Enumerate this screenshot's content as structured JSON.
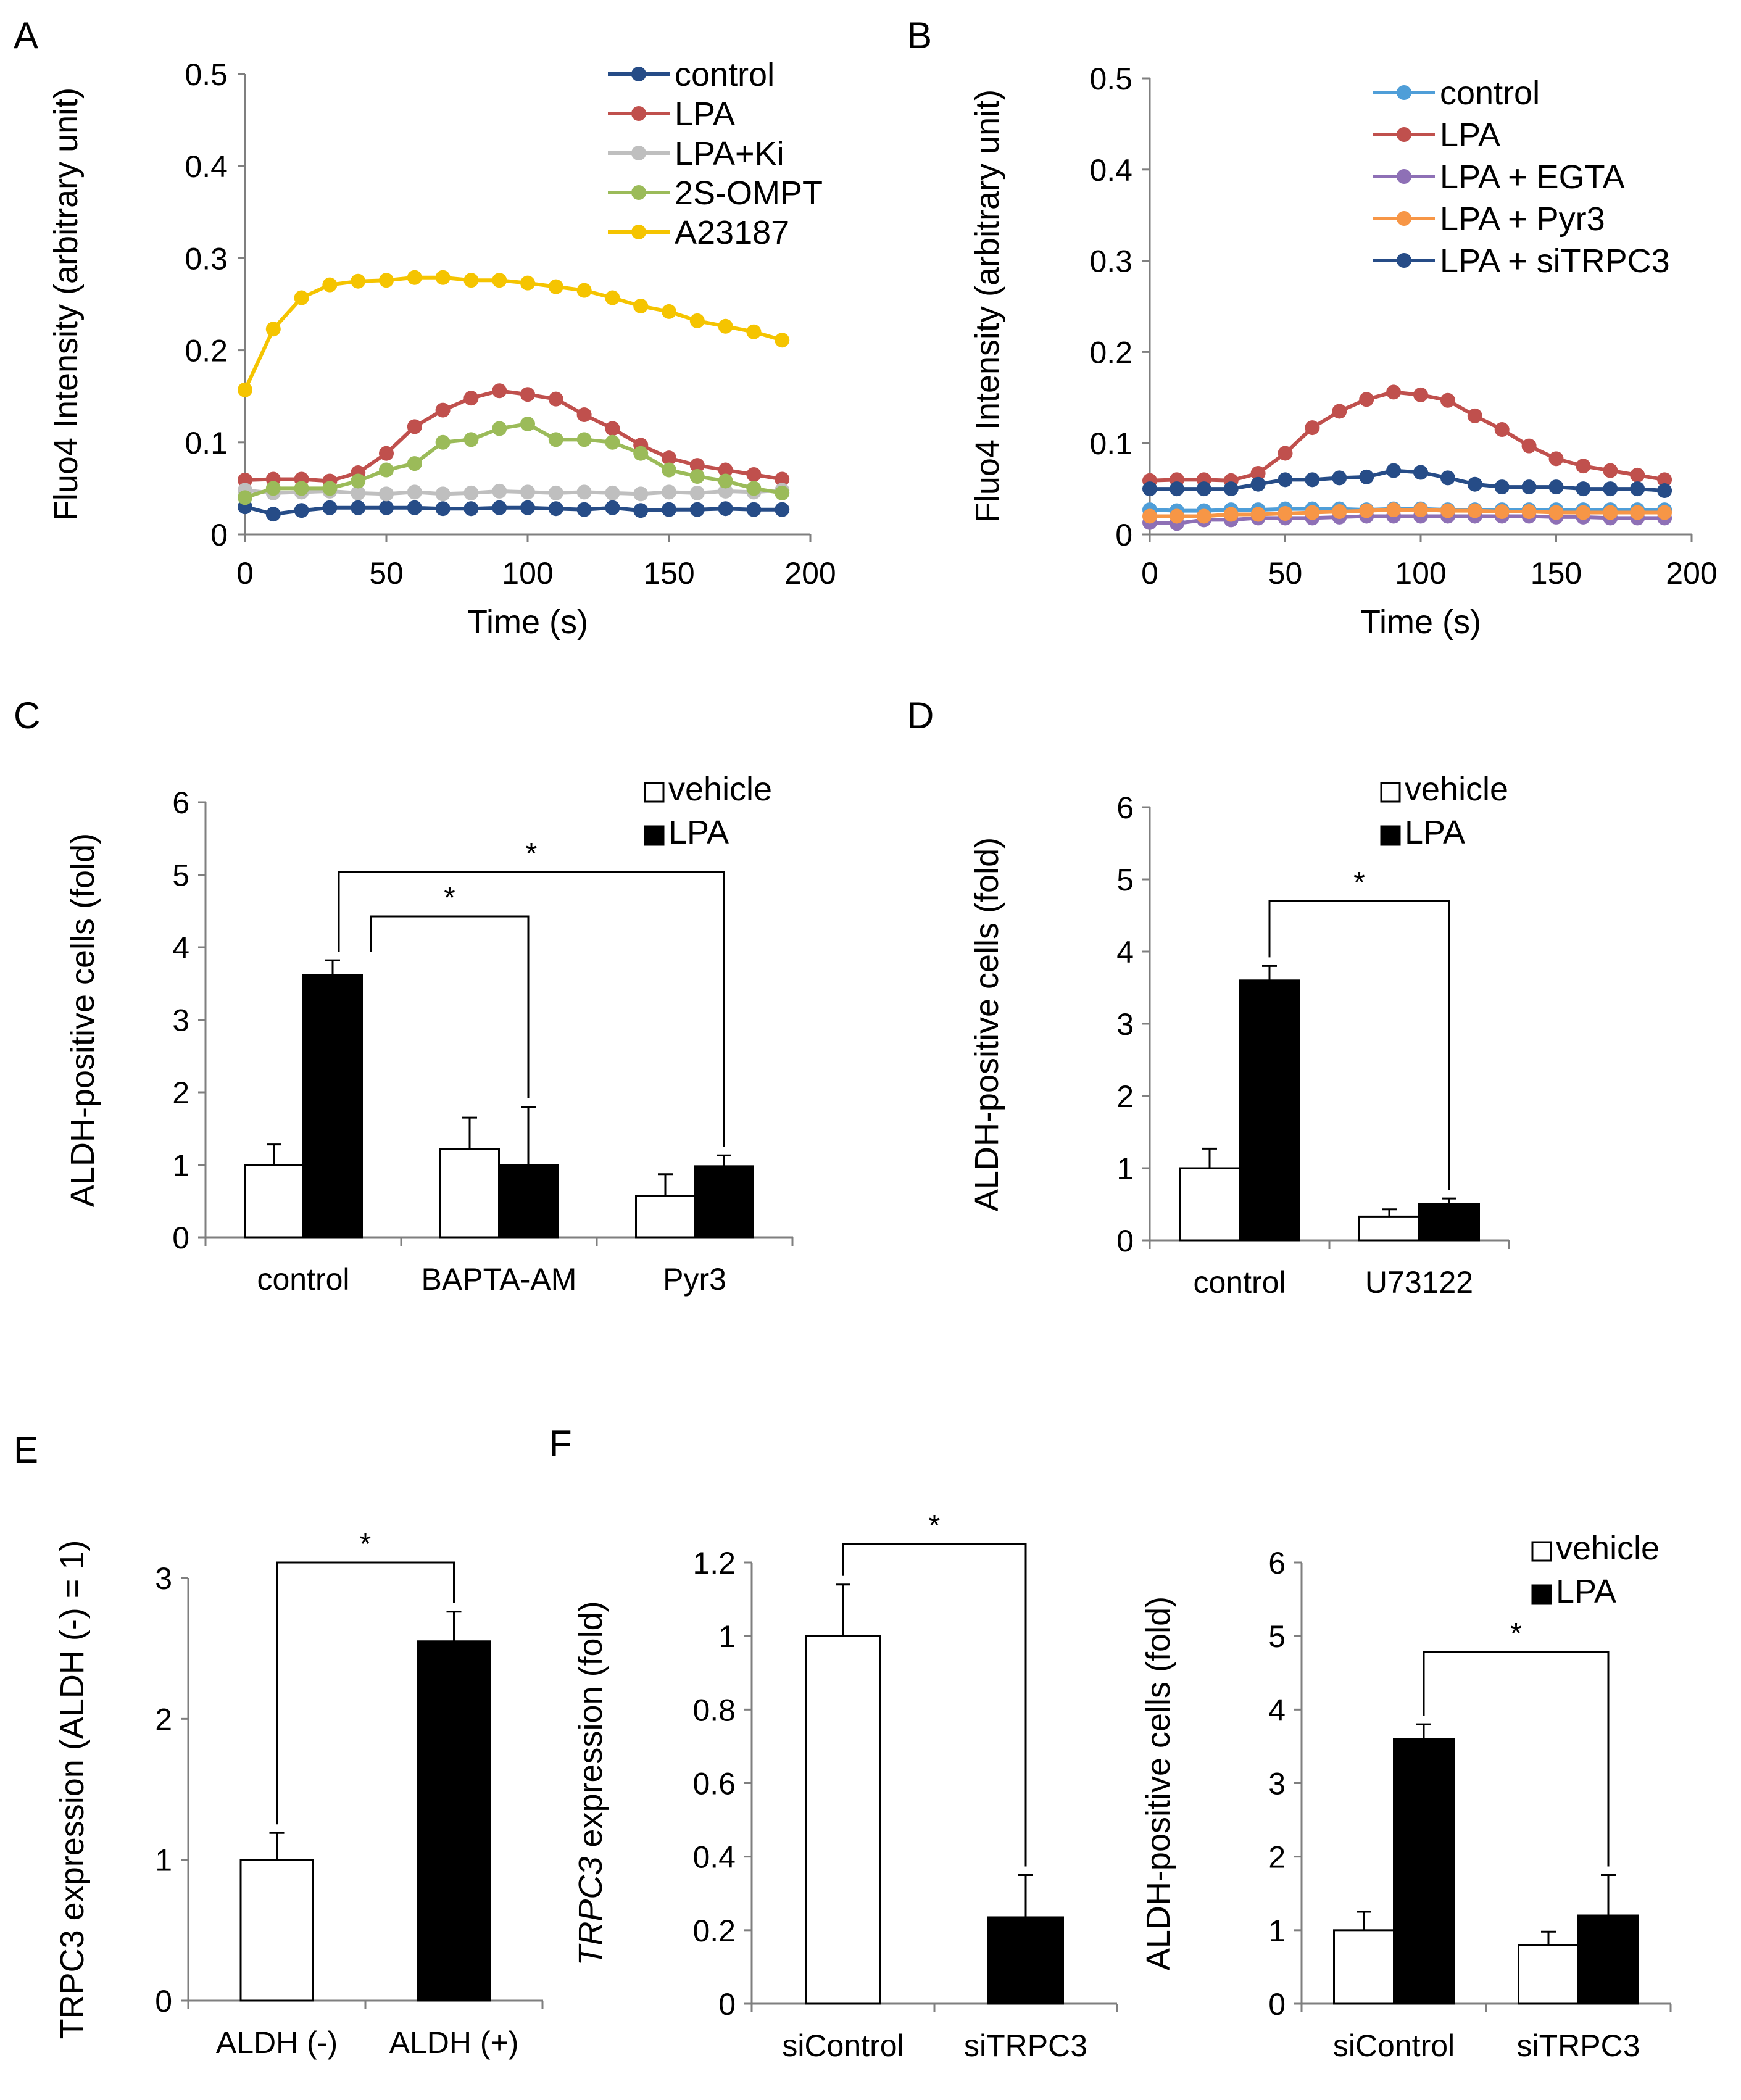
{
  "colors": {
    "control_A": "#264c87",
    "LPA": "#c0504d",
    "LPA+Ki": "#bfbfbf",
    "2S-OMPT": "#9bbb59",
    "A23187": "#f5c400",
    "control_B": "#4f9ed8",
    "LPA + EGTA": "#8e70b6",
    "LPA + Pyr3": "#f79646",
    "LPA + siTRPC3": "#264c87",
    "vehicle": "#ffffff",
    "LPA_bar": "#000000"
  },
  "chart_data": [
    {
      "panel": "A",
      "type": "line",
      "xlabel": "Time (s)",
      "ylabel": "Fluo4 Intensity (arbitrary unit)",
      "xlim": [
        0,
        200
      ],
      "ylim": [
        0,
        0.5
      ],
      "xticks": [
        "0",
        "50",
        "100",
        "150",
        "200"
      ],
      "yticks": [
        "0",
        "0.1",
        "0.2",
        "0.3",
        "0.4",
        "0.5"
      ],
      "x": [
        0,
        10,
        20,
        30,
        40,
        50,
        60,
        70,
        80,
        90,
        100,
        110,
        120,
        130,
        140,
        150,
        160,
        170,
        180,
        190
      ],
      "series": [
        {
          "name": "control",
          "color_key": "control_A",
          "values": [
            0.03,
            0.022,
            0.026,
            0.029,
            0.029,
            0.029,
            0.029,
            0.028,
            0.028,
            0.029,
            0.029,
            0.028,
            0.027,
            0.029,
            0.026,
            0.027,
            0.027,
            0.028,
            0.027,
            0.027
          ]
        },
        {
          "name": "LPA",
          "color_key": "LPA",
          "values": [
            0.059,
            0.06,
            0.06,
            0.058,
            0.067,
            0.088,
            0.117,
            0.135,
            0.148,
            0.156,
            0.152,
            0.147,
            0.13,
            0.115,
            0.097,
            0.083,
            0.075,
            0.07,
            0.065,
            0.06
          ]
        },
        {
          "name": "LPA+Ki",
          "color_key": "LPA+Ki",
          "values": [
            0.048,
            0.045,
            0.046,
            0.047,
            0.045,
            0.044,
            0.046,
            0.044,
            0.045,
            0.047,
            0.046,
            0.045,
            0.046,
            0.045,
            0.044,
            0.046,
            0.045,
            0.047,
            0.046,
            0.048
          ]
        },
        {
          "name": "2S-OMPT",
          "color_key": "2S-OMPT",
          "values": [
            0.04,
            0.05,
            0.05,
            0.05,
            0.058,
            0.07,
            0.077,
            0.1,
            0.103,
            0.115,
            0.12,
            0.103,
            0.103,
            0.1,
            0.088,
            0.07,
            0.063,
            0.058,
            0.05,
            0.045
          ]
        },
        {
          "name": "A23187",
          "color_key": "A23187",
          "values": [
            0.157,
            0.223,
            0.257,
            0.271,
            0.275,
            0.276,
            0.279,
            0.279,
            0.276,
            0.276,
            0.273,
            0.269,
            0.265,
            0.257,
            0.248,
            0.242,
            0.232,
            0.226,
            0.22,
            0.211
          ]
        }
      ]
    },
    {
      "panel": "B",
      "type": "line",
      "xlabel": "Time (s)",
      "ylabel": "Fluo4 Intensity (arbitrary unit)",
      "xlim": [
        0,
        200
      ],
      "ylim": [
        0,
        0.5
      ],
      "xticks": [
        "0",
        "50",
        "100",
        "150",
        "200"
      ],
      "yticks": [
        "0",
        "0.1",
        "0.2",
        "0.3",
        "0.4",
        "0.5"
      ],
      "x": [
        0,
        10,
        20,
        30,
        40,
        50,
        60,
        70,
        80,
        90,
        100,
        110,
        120,
        130,
        140,
        150,
        160,
        170,
        180,
        190
      ],
      "series": [
        {
          "name": "control",
          "color_key": "control_B",
          "values": [
            0.027,
            0.026,
            0.026,
            0.027,
            0.027,
            0.028,
            0.028,
            0.028,
            0.027,
            0.028,
            0.028,
            0.027,
            0.027,
            0.027,
            0.027,
            0.027,
            0.027,
            0.027,
            0.027,
            0.027
          ]
        },
        {
          "name": "LPA",
          "color_key": "LPA",
          "values": [
            0.059,
            0.06,
            0.06,
            0.059,
            0.067,
            0.089,
            0.117,
            0.135,
            0.148,
            0.156,
            0.153,
            0.147,
            0.13,
            0.115,
            0.097,
            0.083,
            0.075,
            0.07,
            0.065,
            0.06
          ]
        },
        {
          "name": "LPA + EGTA",
          "color_key": "LPA + EGTA",
          "values": [
            0.013,
            0.012,
            0.016,
            0.016,
            0.018,
            0.018,
            0.018,
            0.019,
            0.02,
            0.02,
            0.02,
            0.02,
            0.02,
            0.02,
            0.02,
            0.019,
            0.019,
            0.018,
            0.018,
            0.018
          ]
        },
        {
          "name": "LPA + Pyr3",
          "color_key": "LPA + Pyr3",
          "values": [
            0.02,
            0.02,
            0.02,
            0.022,
            0.022,
            0.023,
            0.024,
            0.025,
            0.026,
            0.027,
            0.027,
            0.026,
            0.026,
            0.025,
            0.025,
            0.024,
            0.024,
            0.024,
            0.024,
            0.024
          ]
        },
        {
          "name": "LPA + siTRPC3",
          "color_key": "LPA + siTRPC3",
          "values": [
            0.05,
            0.05,
            0.05,
            0.05,
            0.055,
            0.06,
            0.06,
            0.062,
            0.063,
            0.07,
            0.068,
            0.062,
            0.055,
            0.052,
            0.052,
            0.052,
            0.05,
            0.05,
            0.05,
            0.048
          ]
        }
      ]
    },
    {
      "panel": "C",
      "type": "bar",
      "ylabel": "ALDH-positive cells (fold)",
      "ylim": [
        0,
        6
      ],
      "yticks": [
        "0",
        "1",
        "2",
        "3",
        "4",
        "5",
        "6"
      ],
      "categories": [
        "control",
        "BAPTA-AM",
        "Pyr3"
      ],
      "series": [
        {
          "name": "vehicle",
          "values": [
            1.0,
            1.22,
            0.57
          ],
          "errors": [
            0.28,
            0.43,
            0.3
          ]
        },
        {
          "name": "LPA",
          "values": [
            3.62,
            1.0,
            0.98
          ],
          "errors": [
            0.2,
            0.8,
            0.15
          ]
        }
      ],
      "significance": [
        {
          "from_category": 0,
          "from_series": 1,
          "to_category": 1,
          "to_series": 1,
          "label": "*"
        },
        {
          "from_category": 0,
          "from_series": 1,
          "to_category": 2,
          "to_series": 1,
          "label": "*"
        }
      ]
    },
    {
      "panel": "D",
      "type": "bar",
      "ylabel": "ALDH-positive cells (fold)",
      "ylim": [
        0,
        6
      ],
      "yticks": [
        "0",
        "1",
        "2",
        "3",
        "4",
        "5",
        "6"
      ],
      "categories": [
        "control",
        "U73122"
      ],
      "series": [
        {
          "name": "vehicle",
          "values": [
            1.0,
            0.33
          ],
          "errors": [
            0.27,
            0.1
          ]
        },
        {
          "name": "LPA",
          "values": [
            3.6,
            0.5
          ],
          "errors": [
            0.2,
            0.08
          ]
        }
      ],
      "significance": [
        {
          "from_category": 0,
          "from_series": 1,
          "to_category": 1,
          "to_series": 1,
          "label": "*"
        }
      ]
    },
    {
      "panel": "E",
      "type": "bar",
      "ylabel": "TRPC3 expression (ALDH (-) = 1)",
      "ylim": [
        0,
        3
      ],
      "yticks": [
        "0",
        "1",
        "2",
        "3"
      ],
      "categories": [
        "ALDH (-)",
        "ALDH (+)"
      ],
      "values": [
        1.0,
        2.55
      ],
      "errors": [
        0.19,
        0.21
      ],
      "fills": [
        "#ffffff",
        "#000000"
      ],
      "significance": [
        {
          "from_category": 0,
          "to_category": 1,
          "label": "*"
        }
      ]
    },
    {
      "panel": "F",
      "type": "bar",
      "ylabel_italic": "TRPC3",
      "ylabel": " expression (fold)",
      "ylim": [
        0,
        1.2
      ],
      "yticks": [
        "0",
        "0.2",
        "0.4",
        "0.6",
        "0.8",
        "1",
        "1.2"
      ],
      "categories": [
        "siControl",
        "siTRPC3"
      ],
      "values": [
        1.0,
        0.235
      ],
      "errors": [
        0.14,
        0.115
      ],
      "fills": [
        "#ffffff",
        "#000000"
      ],
      "significance": [
        {
          "from_category": 0,
          "to_category": 1,
          "label": "*"
        }
      ]
    },
    {
      "panel": "",
      "type": "bar",
      "ylabel": "ALDH-positive cells (fold)",
      "ylim": [
        0,
        6
      ],
      "yticks": [
        "0",
        "1",
        "2",
        "3",
        "4",
        "5",
        "6"
      ],
      "categories": [
        "siControl",
        "siTRPC3"
      ],
      "series": [
        {
          "name": "vehicle",
          "values": [
            1.0,
            0.8
          ],
          "errors": [
            0.25,
            0.18
          ]
        },
        {
          "name": "LPA",
          "values": [
            3.6,
            1.2
          ],
          "errors": [
            0.2,
            0.55
          ]
        }
      ],
      "significance": [
        {
          "from_category": 0,
          "from_series": 1,
          "to_category": 1,
          "to_series": 1,
          "label": "*"
        }
      ]
    }
  ]
}
